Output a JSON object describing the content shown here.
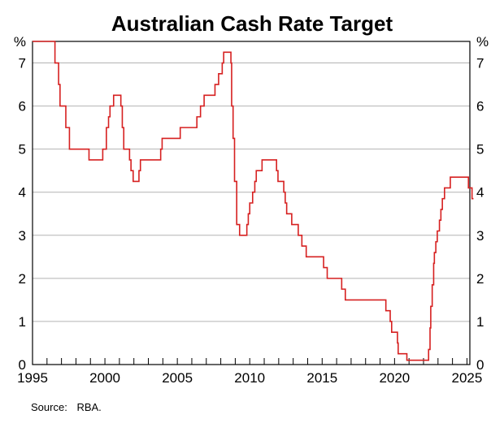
{
  "chart_data": {
    "type": "line",
    "title": "Australian Cash Rate Target",
    "y_unit": "%",
    "ylim": [
      0,
      7.5
    ],
    "yticks": [
      0,
      1,
      2,
      3,
      4,
      5,
      6,
      7
    ],
    "xlim": [
      1995,
      2025.2
    ],
    "xticks": [
      1995,
      2000,
      2005,
      2010,
      2015,
      2020,
      2025
    ],
    "grid": "horizontal",
    "source_label": "Source:",
    "source_value": "RBA.",
    "line_color": "#d62020",
    "series": [
      {
        "step": true,
        "points": [
          [
            1995.0,
            7.5
          ],
          [
            1996.55,
            7.0
          ],
          [
            1996.8,
            6.5
          ],
          [
            1996.9,
            6.0
          ],
          [
            1997.3,
            5.5
          ],
          [
            1997.55,
            5.0
          ],
          [
            1998.9,
            4.75
          ],
          [
            1999.85,
            5.0
          ],
          [
            2000.1,
            5.5
          ],
          [
            2000.25,
            5.75
          ],
          [
            2000.35,
            6.0
          ],
          [
            2000.6,
            6.25
          ],
          [
            2001.1,
            6.0
          ],
          [
            2001.2,
            5.5
          ],
          [
            2001.3,
            5.0
          ],
          [
            2001.7,
            4.75
          ],
          [
            2001.8,
            4.5
          ],
          [
            2001.95,
            4.25
          ],
          [
            2002.35,
            4.5
          ],
          [
            2002.45,
            4.75
          ],
          [
            2003.85,
            5.0
          ],
          [
            2003.95,
            5.25
          ],
          [
            2005.2,
            5.5
          ],
          [
            2006.35,
            5.75
          ],
          [
            2006.6,
            6.0
          ],
          [
            2006.85,
            6.25
          ],
          [
            2007.6,
            6.5
          ],
          [
            2007.85,
            6.75
          ],
          [
            2008.1,
            7.0
          ],
          [
            2008.2,
            7.25
          ],
          [
            2008.7,
            7.0
          ],
          [
            2008.75,
            6.0
          ],
          [
            2008.85,
            5.25
          ],
          [
            2008.95,
            4.25
          ],
          [
            2009.1,
            3.25
          ],
          [
            2009.3,
            3.0
          ],
          [
            2009.8,
            3.25
          ],
          [
            2009.9,
            3.5
          ],
          [
            2010.0,
            3.75
          ],
          [
            2010.2,
            4.0
          ],
          [
            2010.35,
            4.25
          ],
          [
            2010.45,
            4.5
          ],
          [
            2010.85,
            4.75
          ],
          [
            2011.85,
            4.5
          ],
          [
            2011.95,
            4.25
          ],
          [
            2012.35,
            4.0
          ],
          [
            2012.45,
            3.75
          ],
          [
            2012.55,
            3.5
          ],
          [
            2012.9,
            3.25
          ],
          [
            2013.35,
            3.0
          ],
          [
            2013.6,
            2.75
          ],
          [
            2013.9,
            2.5
          ],
          [
            2015.1,
            2.25
          ],
          [
            2015.35,
            2.0
          ],
          [
            2016.35,
            1.75
          ],
          [
            2016.6,
            1.5
          ],
          [
            2019.4,
            1.25
          ],
          [
            2019.7,
            1.0
          ],
          [
            2019.8,
            0.75
          ],
          [
            2020.2,
            0.5
          ],
          [
            2020.25,
            0.25
          ],
          [
            2020.85,
            0.1
          ],
          [
            2022.35,
            0.35
          ],
          [
            2022.45,
            0.85
          ],
          [
            2022.5,
            1.35
          ],
          [
            2022.6,
            1.85
          ],
          [
            2022.7,
            2.35
          ],
          [
            2022.75,
            2.6
          ],
          [
            2022.85,
            2.85
          ],
          [
            2022.95,
            3.1
          ],
          [
            2023.1,
            3.35
          ],
          [
            2023.2,
            3.6
          ],
          [
            2023.3,
            3.85
          ],
          [
            2023.45,
            4.1
          ],
          [
            2023.85,
            4.35
          ],
          [
            2025.1,
            4.1
          ],
          [
            2025.35,
            3.85
          ],
          [
            2025.45,
            3.85
          ]
        ]
      }
    ]
  }
}
